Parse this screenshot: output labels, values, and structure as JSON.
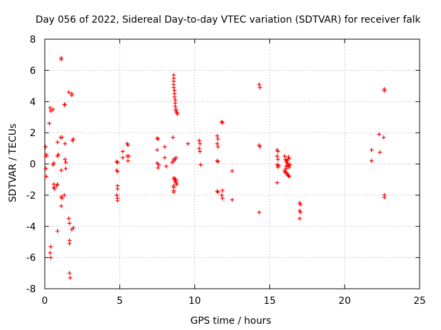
{
  "chart_data": {
    "type": "scatter",
    "title": "Day 056 of 2022, Sidereal Day-to-day VTEC variation (SDTVAR) for receiver falk",
    "xlabel": "GPS time / hours",
    "ylabel": "SDTVAR / TECUs",
    "xlim": [
      0,
      25
    ],
    "ylim": [
      -8,
      8
    ],
    "xticks": [
      0,
      5,
      10,
      15,
      20,
      25
    ],
    "yticks": [
      -8,
      -6,
      -4,
      -2,
      0,
      2,
      4,
      6,
      8
    ],
    "grid": true,
    "marker": "+",
    "color": "#ff0000",
    "points": [
      [
        0.05,
        1.1
      ],
      [
        0.1,
        0.6
      ],
      [
        0.1,
        0.5
      ],
      [
        0.08,
        -0.3
      ],
      [
        0.1,
        -0.8
      ],
      [
        0.3,
        2.6
      ],
      [
        0.35,
        3.6
      ],
      [
        0.4,
        3.4
      ],
      [
        0.55,
        3.5
      ],
      [
        0.4,
        -5.3
      ],
      [
        0.35,
        -5.7
      ],
      [
        0.4,
        -6.0
      ],
      [
        0.55,
        -0.05
      ],
      [
        0.6,
        0.05
      ],
      [
        0.6,
        -1.3
      ],
      [
        0.6,
        -1.5
      ],
      [
        0.65,
        -1.6
      ],
      [
        0.8,
        -1.4
      ],
      [
        0.85,
        -1.3
      ],
      [
        0.85,
        0.5
      ],
      [
        0.9,
        0.6
      ],
      [
        0.85,
        1.4
      ],
      [
        0.85,
        -4.3
      ],
      [
        1.1,
        6.8
      ],
      [
        1.1,
        6.7
      ],
      [
        1.05,
        1.7
      ],
      [
        1.15,
        1.7
      ],
      [
        1.1,
        -0.4
      ],
      [
        1.1,
        -2.1
      ],
      [
        1.15,
        -2.2
      ],
      [
        1.1,
        -2.7
      ],
      [
        1.3,
        3.8
      ],
      [
        1.35,
        3.8
      ],
      [
        1.35,
        1.3
      ],
      [
        1.35,
        0.3
      ],
      [
        1.4,
        0.1
      ],
      [
        1.4,
        -0.3
      ],
      [
        1.3,
        -2.0
      ],
      [
        1.6,
        4.6
      ],
      [
        1.8,
        4.4
      ],
      [
        1.8,
        4.5
      ],
      [
        1.6,
        -3.5
      ],
      [
        1.65,
        -3.8
      ],
      [
        1.65,
        -4.9
      ],
      [
        1.65,
        -5.1
      ],
      [
        1.65,
        -7.0
      ],
      [
        1.7,
        -7.3
      ],
      [
        1.85,
        1.5
      ],
      [
        1.9,
        1.6
      ],
      [
        1.8,
        -4.2
      ],
      [
        1.9,
        -4.1
      ],
      [
        4.8,
        0.15
      ],
      [
        4.85,
        0.1
      ],
      [
        4.8,
        -0.4
      ],
      [
        4.85,
        -0.5
      ],
      [
        4.85,
        -1.4
      ],
      [
        4.85,
        -1.6
      ],
      [
        4.8,
        -2.0
      ],
      [
        4.85,
        -2.2
      ],
      [
        4.85,
        -2.35
      ],
      [
        5.2,
        0.8
      ],
      [
        5.2,
        0.4
      ],
      [
        5.5,
        1.3
      ],
      [
        5.55,
        1.2
      ],
      [
        5.5,
        0.5
      ],
      [
        5.6,
        0.5
      ],
      [
        5.55,
        0.2
      ],
      [
        7.5,
        1.65
      ],
      [
        7.55,
        1.6
      ],
      [
        7.5,
        0.9
      ],
      [
        7.5,
        0.05
      ],
      [
        7.6,
        -0.05
      ],
      [
        7.55,
        -0.25
      ],
      [
        8.0,
        1.1
      ],
      [
        8.0,
        0.4
      ],
      [
        8.1,
        -0.15
      ],
      [
        8.55,
        1.7
      ],
      [
        8.5,
        0.1
      ],
      [
        8.6,
        0.2
      ],
      [
        8.6,
        0.3
      ],
      [
        8.7,
        0.3
      ],
      [
        8.75,
        0.4
      ],
      [
        8.6,
        -0.9
      ],
      [
        8.65,
        -1.0
      ],
      [
        8.7,
        -1.1
      ],
      [
        8.75,
        -1.2
      ],
      [
        8.8,
        -1.3
      ],
      [
        8.6,
        -1.4
      ],
      [
        8.6,
        -1.5
      ],
      [
        8.6,
        -1.7
      ],
      [
        8.6,
        -1.8
      ],
      [
        8.7,
        -0.95
      ],
      [
        8.75,
        -1.05
      ],
      [
        8.6,
        5.7
      ],
      [
        8.6,
        5.5
      ],
      [
        8.6,
        5.3
      ],
      [
        8.6,
        5.1
      ],
      [
        8.6,
        4.9
      ],
      [
        8.65,
        4.7
      ],
      [
        8.65,
        4.5
      ],
      [
        8.65,
        4.3
      ],
      [
        8.7,
        4.1
      ],
      [
        8.7,
        3.9
      ],
      [
        8.7,
        3.7
      ],
      [
        8.75,
        3.5
      ],
      [
        8.75,
        3.4
      ],
      [
        8.8,
        3.3
      ],
      [
        8.85,
        3.2
      ],
      [
        9.55,
        1.3
      ],
      [
        10.3,
        1.5
      ],
      [
        10.35,
        1.3
      ],
      [
        10.3,
        1.0
      ],
      [
        10.35,
        0.8
      ],
      [
        10.4,
        -0.05
      ],
      [
        11.5,
        1.8
      ],
      [
        11.55,
        1.6
      ],
      [
        11.5,
        1.3
      ],
      [
        11.55,
        1.1
      ],
      [
        11.5,
        0.2
      ],
      [
        11.55,
        0.15
      ],
      [
        11.5,
        -1.75
      ],
      [
        11.55,
        -1.8
      ],
      [
        11.8,
        2.7
      ],
      [
        11.85,
        2.65
      ],
      [
        11.85,
        -1.7
      ],
      [
        11.8,
        -2.0
      ],
      [
        11.85,
        -2.2
      ],
      [
        12.5,
        -0.45
      ],
      [
        12.5,
        -2.3
      ],
      [
        14.3,
        5.1
      ],
      [
        14.35,
        4.9
      ],
      [
        14.3,
        1.2
      ],
      [
        14.35,
        1.1
      ],
      [
        14.3,
        -3.1
      ],
      [
        15.5,
        0.9
      ],
      [
        15.55,
        0.8
      ],
      [
        15.5,
        0.5
      ],
      [
        15.55,
        0.3
      ],
      [
        15.5,
        -0.05
      ],
      [
        15.6,
        -0.1
      ],
      [
        15.55,
        -0.2
      ],
      [
        15.5,
        -1.2
      ],
      [
        16.0,
        0.5
      ],
      [
        16.05,
        0.3
      ],
      [
        16.1,
        0.2
      ],
      [
        16.15,
        0.1
      ],
      [
        16.2,
        0.0
      ],
      [
        16.25,
        -0.1
      ],
      [
        16.3,
        -0.2
      ],
      [
        16.1,
        -0.3
      ],
      [
        16.0,
        -0.4
      ],
      [
        16.05,
        -0.5
      ],
      [
        16.15,
        -0.6
      ],
      [
        16.2,
        -0.7
      ],
      [
        16.3,
        -0.8
      ],
      [
        16.25,
        0.45
      ],
      [
        16.3,
        0.35
      ],
      [
        16.2,
        0.25
      ],
      [
        16.35,
        -0.05
      ],
      [
        16.1,
        -0.15
      ],
      [
        16.05,
        -0.55
      ],
      [
        16.25,
        -0.75
      ],
      [
        17.0,
        -2.5
      ],
      [
        17.05,
        -2.6
      ],
      [
        17.0,
        -3.0
      ],
      [
        17.05,
        -3.1
      ],
      [
        17.0,
        -3.5
      ],
      [
        21.8,
        0.9
      ],
      [
        21.8,
        0.2
      ],
      [
        22.3,
        1.9
      ],
      [
        22.35,
        0.75
      ],
      [
        22.6,
        1.7
      ],
      [
        22.65,
        4.8
      ],
      [
        22.65,
        4.7
      ],
      [
        22.65,
        -2.0
      ],
      [
        22.65,
        -2.15
      ]
    ]
  }
}
